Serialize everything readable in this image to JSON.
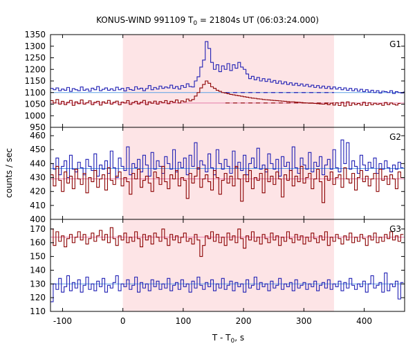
{
  "chart_data": {
    "type": "line",
    "title": "KONUS-WIND 991109 T",
    "title_subscript": "0",
    "title_rest": " = 21804s UT (06:03:24.000)",
    "xlabel": "T - T",
    "xlabel_subscript": "0",
    "xlabel_rest": ", s",
    "ylabel": "counts / sec",
    "xlim": [
      -120,
      467
    ],
    "xticks": [
      -100,
      0,
      100,
      200,
      300,
      400
    ],
    "shaded_interval": [
      0,
      350
    ],
    "colors": {
      "blue": "#1f1fb4",
      "red": "#8b0000",
      "blue_bg": "#5aa0e6",
      "red_bg": "#e67aa8",
      "shade": "#fde4e6"
    },
    "panels": [
      {
        "label": "G1",
        "ylim": [
          950,
          1350
        ],
        "yticks": [
          950,
          1000,
          1050,
          1100,
          1150,
          1200,
          1250,
          1300,
          1350
        ],
        "series": [
          {
            "color": "blue",
            "bin": 4.5,
            "values": [
              1118,
              1112,
              1120,
              1108,
              1115,
              1110,
              1122,
              1105,
              1117,
              1112,
              1108,
              1124,
              1110,
              1115,
              1106,
              1119,
              1112,
              1126,
              1108,
              1114,
              1120,
              1110,
              1116,
              1109,
              1123,
              1112,
              1118,
              1107,
              1121,
              1113,
              1110,
              1125,
              1115,
              1119,
              1108,
              1117,
              1130,
              1112,
              1122,
              1115,
              1128,
              1118,
              1124,
              1120,
              1132,
              1118,
              1126,
              1115,
              1130,
              1122,
              1138,
              1126,
              1124,
              1150,
              1168,
              1210,
              1240,
              1320,
              1290,
              1230,
              1200,
              1220,
              1190,
              1215,
              1200,
              1225,
              1195,
              1220,
              1205,
              1230,
              1210,
              1200,
              1180,
              1160,
              1170,
              1155,
              1165,
              1150,
              1160,
              1148,
              1158,
              1145,
              1152,
              1140,
              1150,
              1138,
              1146,
              1135,
              1142,
              1132,
              1140,
              1130,
              1137,
              1128,
              1135,
              1125,
              1132,
              1122,
              1130,
              1120,
              1128,
              1118,
              1126,
              1116,
              1124,
              1115,
              1122,
              1112,
              1120,
              1110,
              1118,
              1108,
              1116,
              1106,
              1114,
              1104,
              1112,
              1102,
              1110,
              1100,
              1108,
              1098,
              1106,
              1104,
              1100,
              1108,
              1096,
              1104,
              1100,
              1098,
              1102
            ]
          },
          {
            "color": "red",
            "bin": 4.5,
            "values": [
              1065,
              1055,
              1070,
              1050,
              1062,
              1048,
              1058,
              1066,
              1045,
              1060,
              1052,
              1068,
              1050,
              1056,
              1064,
              1048,
              1058,
              1062,
              1046,
              1060,
              1054,
              1066,
              1050,
              1058,
              1063,
              1047,
              1059,
              1055,
              1065,
              1049,
              1057,
              1062,
              1051,
              1058,
              1066,
              1048,
              1060,
              1054,
              1063,
              1050,
              1061,
              1056,
              1065,
              1052,
              1062,
              1058,
              1068,
              1055,
              1064,
              1060,
              1072,
              1064,
              1070,
              1085,
              1100,
              1120,
              1135,
              1150,
              1140,
              1125,
              1118,
              1110,
              1105,
              1100,
              1098,
              1095,
              1092,
              1090,
              1088,
              1086,
              1084,
              1082,
              1080,
              1078,
              1076,
              1075,
              1073,
              1072,
              1070,
              1069,
              1068,
              1067,
              1066,
              1065,
              1064,
              1063,
              1062,
              1061,
              1060,
              1060,
              1059,
              1058,
              1057,
              1056,
              1055,
              1054,
              1054,
              1053,
              1052,
              1051,
              1050,
              1052,
              1048,
              1054,
              1046,
              1056,
              1044,
              1058,
              1042,
              1060,
              1045,
              1055,
              1048,
              1053,
              1046,
              1058,
              1044,
              1056,
              1047,
              1054,
              1049,
              1052,
              1045,
              1057,
              1048,
              1055,
              1050,
              1046,
              1053
            ]
          }
        ],
        "background_levels": [
          {
            "color": "blue_bg",
            "value": 1100
          },
          {
            "color": "red_bg",
            "value": 1055
          }
        ],
        "dashed_levels": [
          {
            "color": "blue",
            "value": 1100,
            "from": 170,
            "to": 350
          },
          {
            "color": "red",
            "value": 1055,
            "from": 170,
            "to": 350
          }
        ]
      },
      {
        "label": "G2",
        "ylim": [
          400,
          466
        ],
        "yticks": [
          400,
          410,
          420,
          430,
          440,
          450,
          460
        ],
        "series": [
          {
            "color": "blue",
            "bin": 4.5,
            "values": [
              440,
              436,
              444,
              432,
              438,
              442,
              430,
              446,
              436,
              434,
              441,
              437,
              432,
              443,
              438,
              435,
              447,
              431,
              439,
              436,
              442,
              433,
              449,
              437,
              430,
              444,
              438,
              435,
              452,
              432,
              440,
              437,
              443,
              434,
              446,
              439,
              431,
              448,
              436,
              442,
              438,
              433,
              445,
              440,
              436,
              450,
              434,
              441,
              437,
              444,
              432,
              446,
              438,
              455,
              436,
              442,
              439,
              434,
              447,
              437,
              432,
              450,
              440,
              436,
              443,
              438,
              433,
              449,
              437,
              441,
              435,
              446,
              432,
              440,
              444,
              437,
              451,
              436,
              439,
              434,
              447,
              440,
              436,
              443,
              431,
              445,
              438,
              441,
              435,
              452,
              437,
              433,
              444,
              439,
              436,
              448,
              434,
              441,
              438,
              445,
              432,
              439,
              443,
              436,
              450,
              437,
              434,
              457,
              440,
              455,
              436,
              442,
              438,
              433,
              446,
              439,
              435,
              441,
              437,
              444,
              433,
              440,
              436,
              442,
              437,
              434,
              439,
              436,
              441,
              437
            ]
          },
          {
            "color": "red",
            "bin": 4.5,
            "values": [
              432,
              424,
              438,
              428,
              420,
              434,
              426,
              431,
              422,
              436,
              429,
              425,
              433,
              419,
              430,
              427,
              435,
              423,
              429,
              432,
              421,
              437,
              428,
              425,
              431,
              434,
              424,
              430,
              427,
              418,
              433,
              429,
              436,
              423,
              428,
              431,
              426,
              420,
              434,
              430,
              425,
              438,
              427,
              422,
              432,
              429,
              435,
              424,
              430,
              428,
              415,
              433,
              426,
              431,
              437,
              423,
              429,
              432,
              427,
              421,
              435,
              430,
              418,
              428,
              433,
              426,
              431,
              424,
              438,
              429,
              413,
              432,
              427,
              435,
              422,
              430,
              428,
              433,
              419,
              436,
              427,
              431,
              425,
              434,
              429,
              416,
              432,
              428,
              435,
              424,
              431,
              427,
              438,
              426,
              430,
              433,
              422,
              429,
              436,
              427,
              412,
              431,
              428,
              434,
              425,
              430,
              432,
              423,
              437,
              429,
              426,
              433,
              421,
              430,
              435,
              427,
              431,
              424,
              429,
              433,
              420,
              436,
              428,
              431,
              425,
              432,
              429,
              422,
              434,
              430
            ]
          }
        ],
        "background_levels": [
          {
            "color": "blue_bg",
            "value": 436.5
          },
          {
            "color": "red_bg",
            "value": 429
          }
        ]
      },
      {
        "label": "G3",
        "ylim": [
          110,
          177
        ],
        "yticks": [
          110,
          120,
          130,
          140,
          150,
          160,
          170
        ],
        "series": [
          {
            "color": "red",
            "bin": 4.5,
            "values": [
              170,
              158,
              168,
              161,
              165,
              157,
              163,
              166,
              160,
              164,
              168,
              162,
              166,
              159,
              163,
              167,
              161,
              165,
              169,
              162,
              166,
              160,
              171,
              163,
              158,
              165,
              162,
              167,
              160,
              164,
              161,
              168,
              163,
              157,
              166,
              162,
              165,
              159,
              167,
              164,
              161,
              170,
              163,
              158,
              166,
              162,
              165,
              160,
              164,
              167,
              161,
              163,
              159,
              166,
              162,
              150,
              158,
              165,
              163,
              168,
              161,
              166,
              160,
              164,
              158,
              167,
              162,
              165,
              160,
              170,
              163,
              156,
              165,
              162,
              168,
              161,
              164,
              159,
              166,
              163,
              160,
              167,
              162,
              165,
              158,
              164,
              161,
              168,
              163,
              160,
              166,
              162,
              165,
              159,
              164,
              161,
              167,
              163,
              160,
              165,
              162,
              168,
              158,
              164,
              161,
              166,
              163,
              159,
              165,
              162,
              167,
              160,
              164,
              161,
              166,
              163,
              158,
              165,
              162,
              167,
              160,
              164,
              161,
              166,
              163,
              168,
              162,
              165,
              161,
              166
            ]
          },
          {
            "color": "blue",
            "bin": 4.5,
            "values": [
              117,
              130,
              126,
              134,
              124,
              128,
              136,
              125,
              131,
              127,
              133,
              124,
              129,
              135,
              126,
              130,
              125,
              132,
              128,
              134,
              124,
              129,
              127,
              131,
              136,
              125,
              130,
              128,
              133,
              126,
              129,
              135,
              124,
              131,
              127,
              130,
              125,
              133,
              128,
              132,
              126,
              130,
              127,
              134,
              125,
              129,
              131,
              126,
              133,
              128,
              130,
              124,
              132,
              127,
              135,
              129,
              126,
              131,
              128,
              133,
              125,
              130,
              127,
              134,
              126,
              129,
              132,
              125,
              131,
              128,
              130,
              124,
              133,
              127,
              129,
              135,
              126,
              131,
              128,
              130,
              125,
              132,
              127,
              129,
              134,
              126,
              130,
              128,
              131,
              125,
              133,
              127,
              129,
              131,
              126,
              130,
              128,
              132,
              125,
              129,
              131,
              127,
              133,
              126,
              130,
              128,
              132,
              125,
              131,
              127,
              134,
              129,
              126,
              130,
              128,
              132,
              124,
              130,
              136,
              127,
              129,
              131,
              124,
              138,
              125,
              130,
              128,
              132,
              119,
              131
            ]
          }
        ],
        "background_levels": [
          {
            "color": "red_bg",
            "value": 164
          },
          {
            "color": "blue_bg",
            "value": 130
          }
        ]
      }
    ]
  }
}
